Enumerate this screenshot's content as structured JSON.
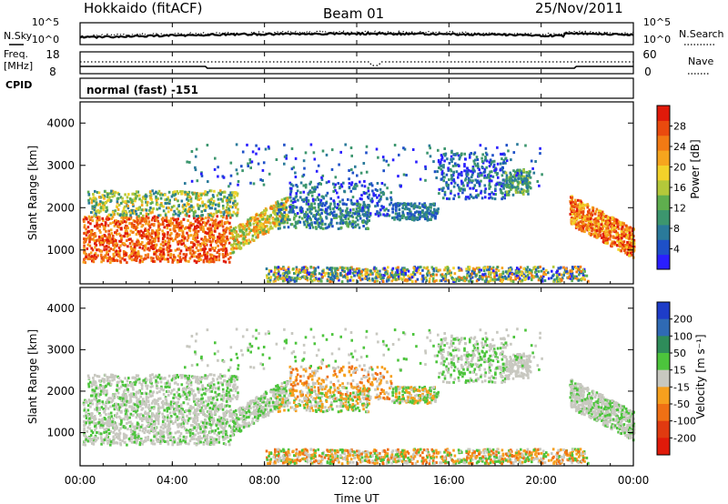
{
  "header": {
    "station": "Hokkaido (fitACF)",
    "beam": "Beam 01",
    "date": "25/Nov/2011"
  },
  "top_panels": {
    "nsky_label": "N.Sky",
    "nsearch_label": "N.Search",
    "noise_tick_high": "10^5",
    "noise_tick_low": "10^0",
    "freq_label": "Freq.",
    "freq_unit": "[MHz]",
    "freq_tick_high": "18",
    "freq_tick_low": "8",
    "nave_label": "Nave",
    "nave_tick_high": "60",
    "nave_tick_low": "0",
    "cpid_label": "CPID",
    "cpid_value": "normal (fast) -151"
  },
  "chart_data": [
    {
      "type": "heatmap",
      "name": "power",
      "ylabel": "Slant Range [km]",
      "ylim": [
        200,
        4500
      ],
      "yticks": [
        1000,
        2000,
        3000,
        4000
      ],
      "xlim": [
        0,
        24
      ],
      "colorbar": {
        "label": "Power [dB]",
        "ticks": [
          4,
          8,
          12,
          16,
          20,
          24,
          28
        ],
        "range": [
          0,
          32
        ],
        "colors": [
          "#2a1eff",
          "#1e50c8",
          "#2a7a9a",
          "#3c966e",
          "#5fae4e",
          "#b4c83a",
          "#f2d22a",
          "#f6a51e",
          "#f27a14",
          "#ea4a0e",
          "#e01a0a"
        ]
      }
    },
    {
      "type": "heatmap",
      "name": "velocity",
      "ylabel": "Slant Range [km]",
      "ylim": [
        200,
        4500
      ],
      "yticks": [
        1000,
        2000,
        3000,
        4000
      ],
      "xlim": [
        0,
        24
      ],
      "xlabel": "Time UT",
      "xtick_labels": [
        "00:00",
        "04:00",
        "08:00",
        "12:00",
        "16:00",
        "20:00",
        "00:00"
      ],
      "colorbar": {
        "label": "Velocity [m s⁻¹]",
        "ticks": [
          200,
          100,
          50,
          15,
          -15,
          -50,
          -100,
          -200
        ],
        "colors": [
          "#1e3cc8",
          "#2f6ab4",
          "#2e8c5a",
          "#4cc43c",
          "#c8c8c0",
          "#f6a01e",
          "#f07014",
          "#e03a10",
          "#e01a0a"
        ]
      }
    }
  ]
}
